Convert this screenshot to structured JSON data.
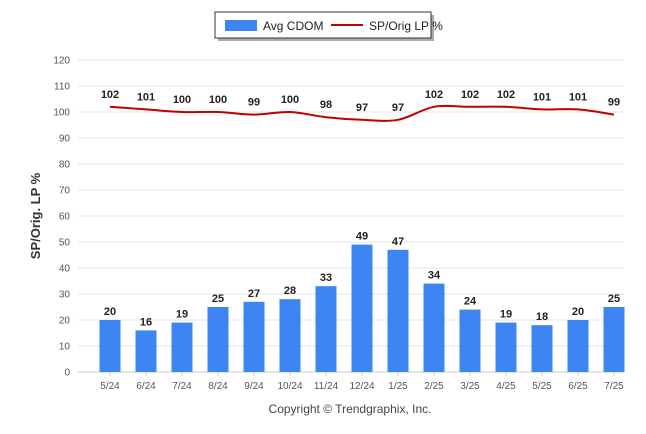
{
  "chart_data": {
    "type": "bar",
    "categories": [
      "5/24",
      "6/24",
      "7/24",
      "8/24",
      "9/24",
      "10/24",
      "11/24",
      "12/24",
      "1/25",
      "2/25",
      "3/25",
      "4/25",
      "5/25",
      "6/25",
      "7/25"
    ],
    "series": [
      {
        "name": "Avg CDOM",
        "type": "bar",
        "color": "#3d85f0",
        "values": [
          20,
          16,
          19,
          25,
          27,
          28,
          33,
          49,
          47,
          34,
          24,
          19,
          18,
          20,
          25
        ]
      },
      {
        "name": "SP/Orig LP %",
        "type": "line",
        "color": "#c00000",
        "values": [
          102,
          101,
          100,
          100,
          99,
          100,
          98,
          97,
          97,
          102,
          102,
          102,
          101,
          101,
          99
        ]
      }
    ],
    "ylabel": "SP/Orig. LP %",
    "xlabel": "",
    "ylim": [
      0,
      120
    ],
    "yticks": [
      0,
      10,
      20,
      30,
      40,
      50,
      60,
      70,
      80,
      90,
      100,
      110,
      120
    ],
    "grid": true,
    "legend_position": "top-center"
  },
  "footer": {
    "credit": "Copyright © Trendgraphix, Inc."
  }
}
